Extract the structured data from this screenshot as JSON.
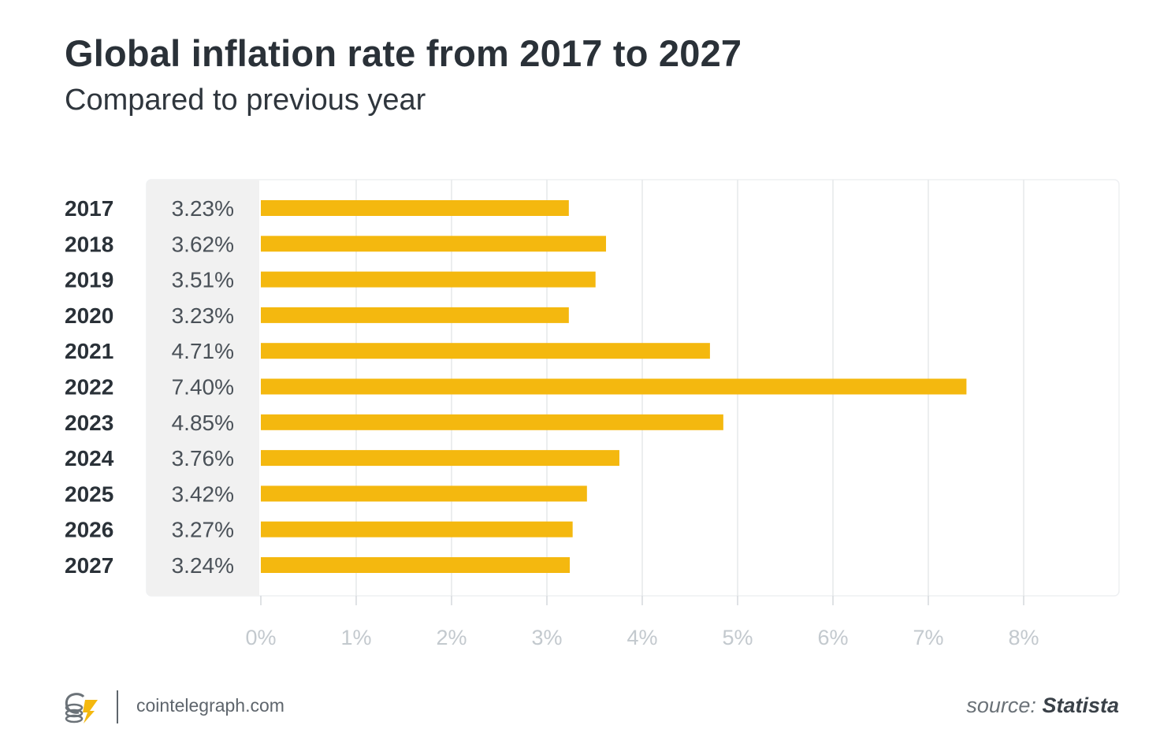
{
  "chart_data": {
    "type": "bar",
    "orientation": "horizontal",
    "title": "Global inflation rate from 2017 to 2027",
    "subtitle": "Compared to previous year",
    "categories": [
      "2017",
      "2018",
      "2019",
      "2020",
      "2021",
      "2022",
      "2023",
      "2024",
      "2025",
      "2026",
      "2027"
    ],
    "values": [
      3.23,
      3.62,
      3.51,
      3.23,
      4.71,
      7.4,
      4.85,
      3.76,
      3.42,
      3.27,
      3.24
    ],
    "value_labels": [
      "3.23%",
      "3.62%",
      "3.51%",
      "3.23%",
      "4.71%",
      "7.40%",
      "4.85%",
      "3.76%",
      "3.42%",
      "3.27%",
      "3.24%"
    ],
    "x_ticks": [
      0,
      1,
      2,
      3,
      4,
      5,
      6,
      7,
      8
    ],
    "x_tick_labels": [
      "0%",
      "1%",
      "2%",
      "3%",
      "4%",
      "5%",
      "6%",
      "7%",
      "8%"
    ],
    "xlim": [
      0,
      9
    ],
    "xlabel": "",
    "ylabel": "",
    "grid": true,
    "bar_color": "#f4b80f",
    "grid_color": "#e6e8ea",
    "label_panel_color": "#f1f1f1",
    "tick_label_color": "#c3c9ce"
  },
  "footer": {
    "brand_icon": "cointelegraph-logo-icon",
    "domain": "cointelegraph.com",
    "source_prefix": "source:",
    "source_name": "Statista"
  }
}
